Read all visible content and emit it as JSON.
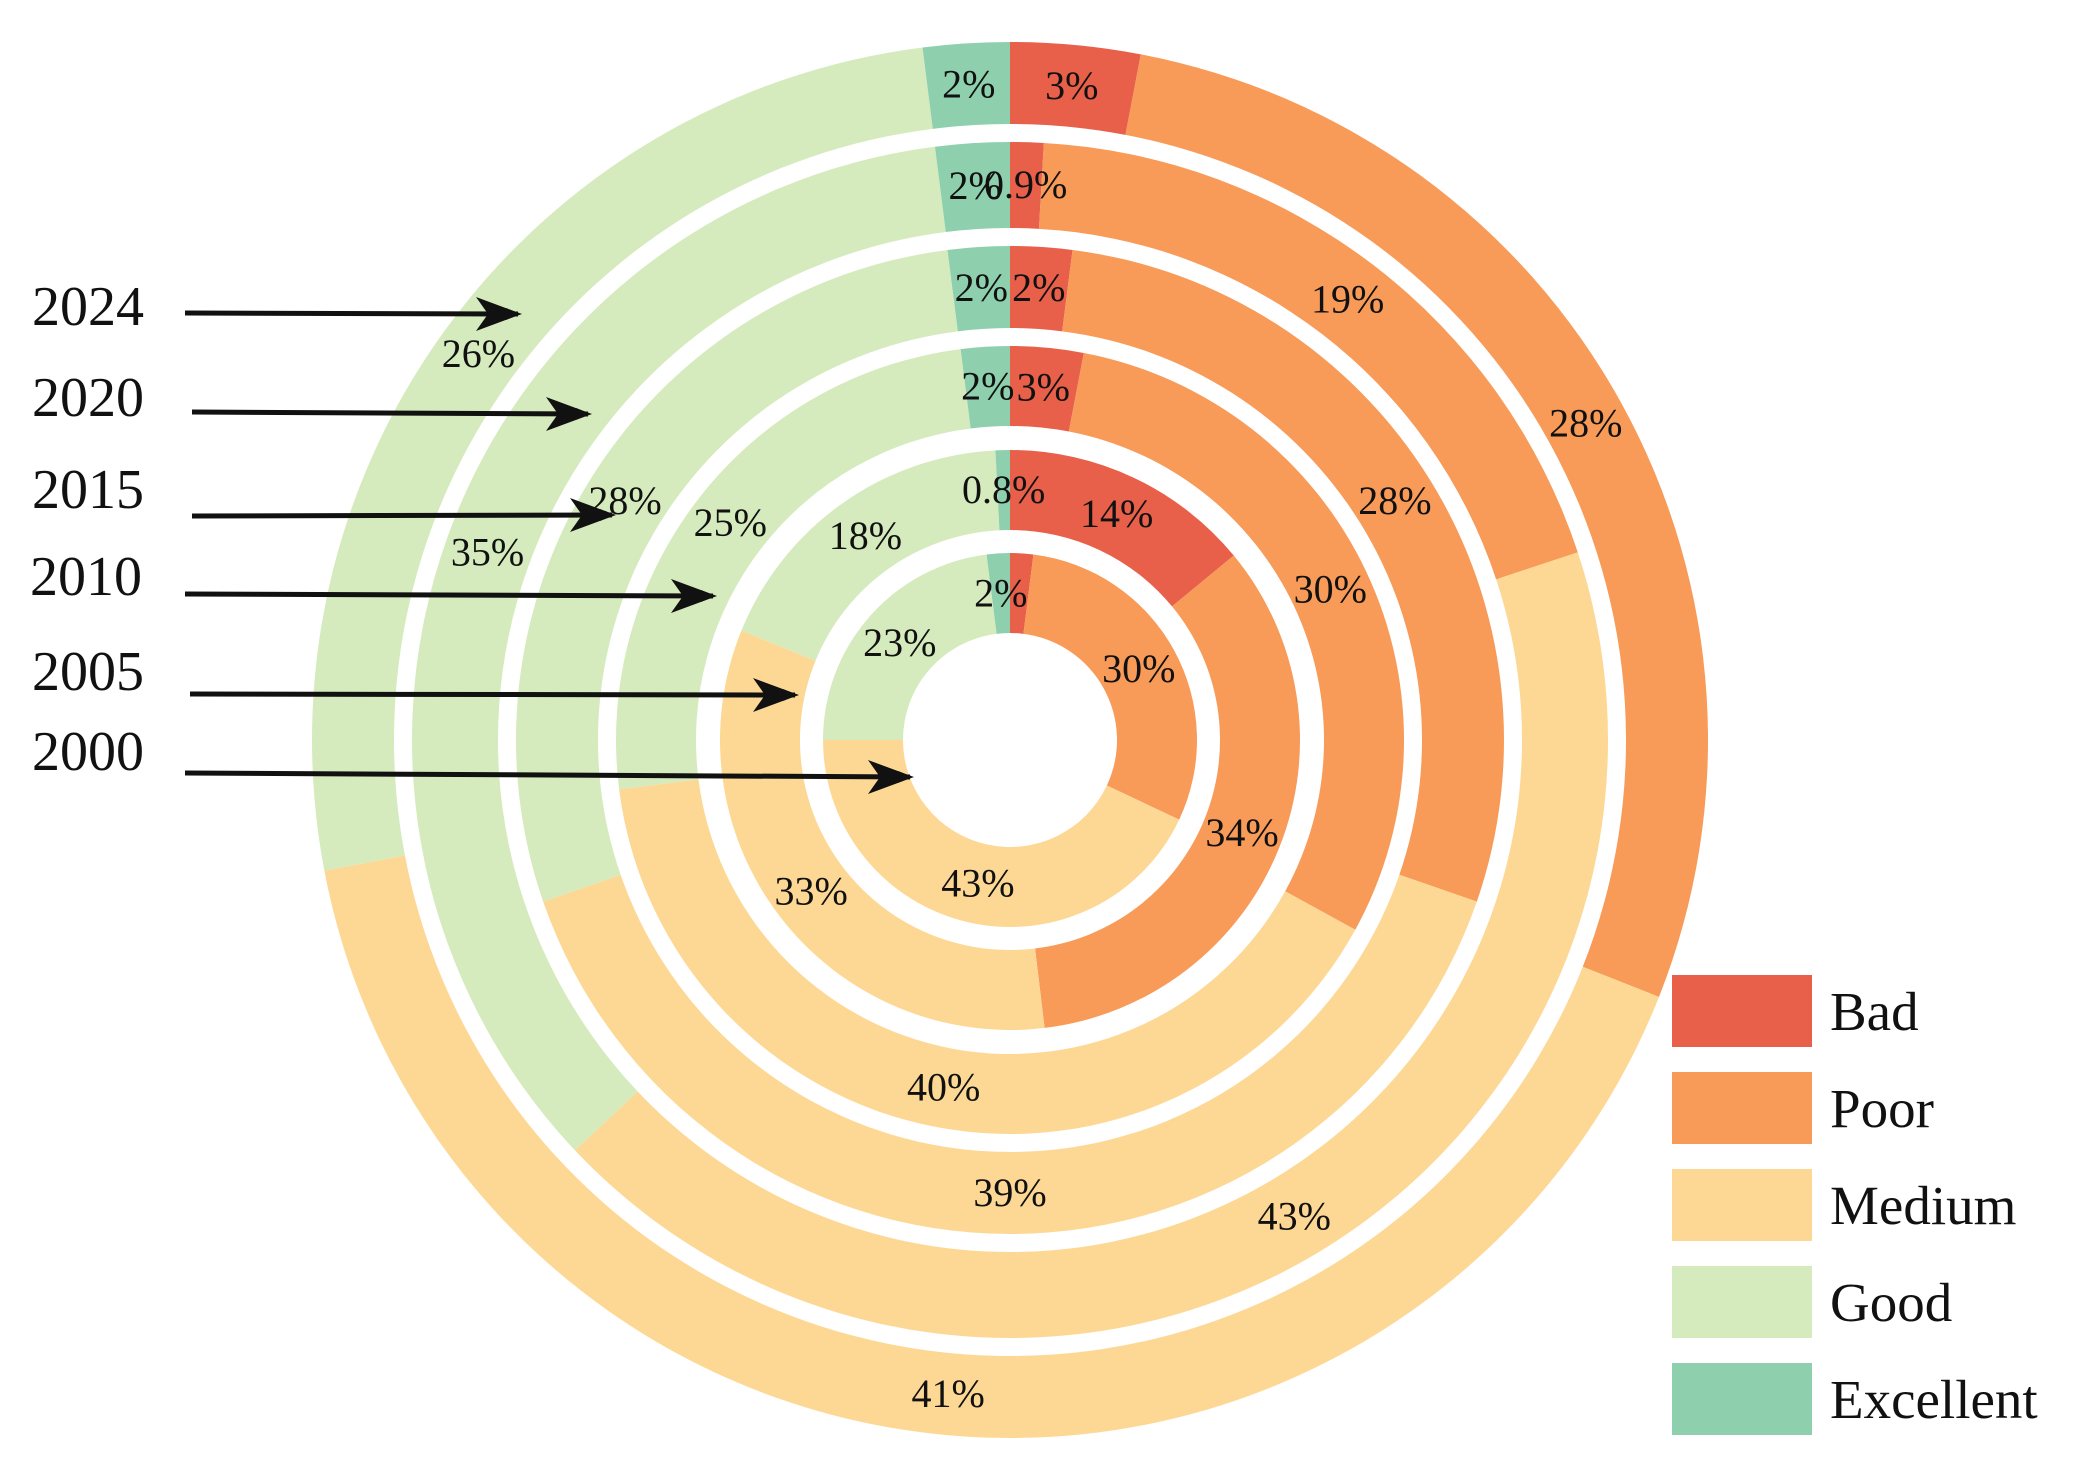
{
  "chart_data": {
    "type": "donut",
    "title": "",
    "categories": [
      "Bad",
      "Poor",
      "Medium",
      "Good",
      "Excellent"
    ],
    "colors": {
      "Bad": "#E8604A",
      "Poor": "#F89A58",
      "Medium": "#FDD895",
      "Good": "#D5EBBD",
      "Excellent": "#8ED0AE"
    },
    "rings": [
      {
        "year": "2000",
        "values": [
          2,
          30,
          43,
          23,
          2
        ],
        "labels": [
          "",
          "30%",
          "43%",
          "23%",
          "2%"
        ]
      },
      {
        "year": "2005",
        "values": [
          14,
          34,
          33,
          18,
          0.8
        ],
        "labels": [
          "14%",
          "34%",
          "33%",
          "18%",
          "0.8%"
        ]
      },
      {
        "year": "2010",
        "values": [
          3,
          30,
          40,
          25,
          2
        ],
        "labels": [
          "3%",
          "30%",
          "40%",
          "25%",
          "2%"
        ]
      },
      {
        "year": "2015",
        "values": [
          2,
          28,
          39,
          28,
          2
        ],
        "labels": [
          "2%",
          "28%",
          "39%",
          "28%",
          "2%"
        ]
      },
      {
        "year": "2020",
        "values": [
          0.9,
          19,
          43,
          35,
          2
        ],
        "labels": [
          "0.9%",
          "19%",
          "43%",
          "35%",
          "2%"
        ]
      },
      {
        "year": "2024",
        "values": [
          3,
          28,
          41,
          26,
          2
        ],
        "labels": [
          "3%",
          "28%",
          "41%",
          "26%",
          "2%"
        ]
      }
    ],
    "year_labels_order": [
      "2024",
      "2020",
      "2015",
      "2010",
      "2005",
      "2000"
    ],
    "legend": {
      "position": "bottom-right",
      "entries": [
        "Bad",
        "Poor",
        "Medium",
        "Good",
        "Excellent"
      ]
    }
  }
}
